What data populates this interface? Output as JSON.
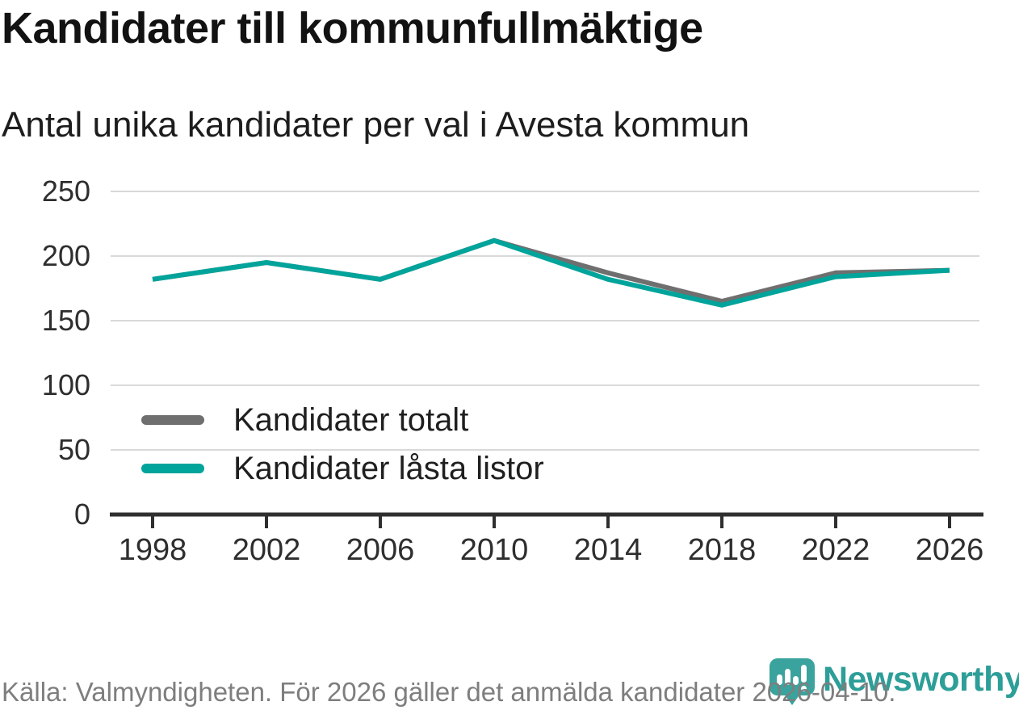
{
  "header": {
    "title": "Kandidater till kommunfullmäktige",
    "subtitle": "Antal unika kandidater per val i Avesta kommun"
  },
  "chart_data": {
    "type": "line",
    "title": "Kandidater till kommunfullmäktige",
    "subtitle": "Antal unika kandidater per val i Avesta kommun",
    "categories": [
      "1998",
      "2002",
      "2006",
      "2010",
      "2014",
      "2018",
      "2022",
      "2026"
    ],
    "series": [
      {
        "name": "Kandidater totalt",
        "color": "#6f6f6f",
        "values": [
          182,
          195,
          182,
          212,
          187,
          165,
          187,
          189
        ]
      },
      {
        "name": "Kandidater låsta listor",
        "color": "#00a49b",
        "values": [
          182,
          195,
          182,
          212,
          182,
          162,
          184,
          189
        ]
      }
    ],
    "ylim": [
      0,
      250
    ],
    "yticks": [
      0,
      50,
      100,
      150,
      200,
      250
    ],
    "xlabel": "",
    "ylabel": "",
    "grid": "horizontal",
    "gridline_color": "#d9d9d9",
    "axis_color": "#2f2f2f",
    "legend_position": "inside-left"
  },
  "footer": {
    "source_text": "Källa: Valmyndigheten. För 2026 gäller det anmälda kandidater 2026-04-10."
  },
  "branding": {
    "logo_text": "Newsworthy",
    "logo_text_color": "#2d9e98",
    "pin_color": "#3aa39d",
    "pin_icon": "bar-chart-exclamation-icon"
  }
}
